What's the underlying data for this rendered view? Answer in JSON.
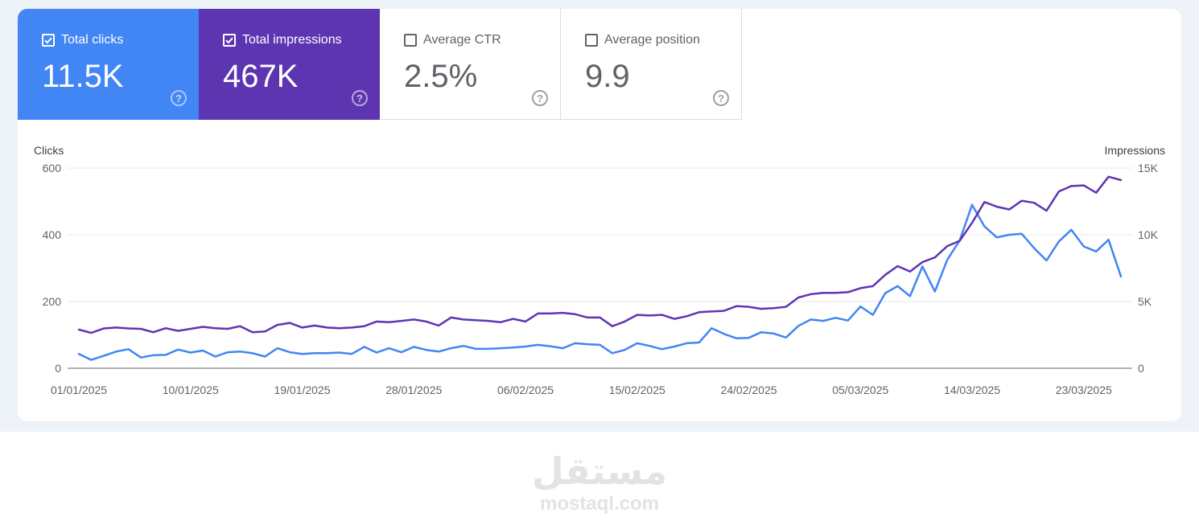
{
  "metrics": [
    {
      "label": "Total clicks",
      "value": "11.5K",
      "checked": true,
      "color": "#4285f4",
      "help": "?"
    },
    {
      "label": "Total impressions",
      "value": "467K",
      "checked": true,
      "color": "#5e35b1",
      "help": "?"
    },
    {
      "label": "Average CTR",
      "value": "2.5%",
      "checked": false,
      "color": "#ffffff",
      "help": "?"
    },
    {
      "label": "Average position",
      "value": "9.9",
      "checked": false,
      "color": "#ffffff",
      "help": "?"
    }
  ],
  "chart_data": {
    "type": "line",
    "left_axis_label": "Clicks",
    "right_axis_label": "Impressions",
    "left_ticks": [
      "0",
      "200",
      "400",
      "600"
    ],
    "right_ticks": [
      "0",
      "5K",
      "10K",
      "15K"
    ],
    "ylim_left": [
      0,
      600
    ],
    "ylim_right": [
      0,
      15000
    ],
    "grid": true,
    "x_start": "01/01/2025",
    "x_tick_labels": [
      "01/01/2025",
      "10/01/2025",
      "19/01/2025",
      "28/01/2025",
      "06/02/2025",
      "15/02/2025",
      "24/02/2025",
      "05/03/2025",
      "14/03/2025",
      "23/03/2025"
    ],
    "series": [
      {
        "name": "Clicks",
        "axis": "left",
        "color": "#4285f4",
        "values": [
          43,
          25,
          37,
          50,
          57,
          32,
          39,
          40,
          56,
          47,
          53,
          35,
          48,
          50,
          45,
          35,
          60,
          48,
          43,
          45,
          45,
          47,
          43,
          64,
          47,
          60,
          48,
          64,
          55,
          50,
          60,
          67,
          58,
          58,
          60,
          62,
          65,
          70,
          66,
          60,
          75,
          72,
          70,
          45,
          55,
          75,
          67,
          57,
          65,
          75,
          77,
          120,
          103,
          90,
          91,
          108,
          104,
          92,
          127,
          146,
          142,
          151,
          143,
          185,
          160,
          225,
          246,
          216,
          305,
          230,
          325,
          383,
          490,
          425,
          392,
          400,
          403,
          360,
          323,
          380,
          415,
          365,
          350,
          385,
          275
        ]
      },
      {
        "name": "Impressions",
        "axis": "right",
        "color": "#5e35b1",
        "values": [
          2900,
          2650,
          2980,
          3050,
          2980,
          2950,
          2700,
          3000,
          2800,
          2950,
          3100,
          3000,
          2950,
          3150,
          2700,
          2750,
          3250,
          3400,
          3050,
          3200,
          3050,
          3000,
          3050,
          3150,
          3500,
          3450,
          3550,
          3650,
          3500,
          3200,
          3800,
          3650,
          3600,
          3550,
          3450,
          3700,
          3500,
          4100,
          4100,
          4150,
          4050,
          3800,
          3800,
          3150,
          3500,
          4000,
          3950,
          4000,
          3700,
          3900,
          4200,
          4250,
          4300,
          4650,
          4600,
          4450,
          4500,
          4600,
          5300,
          5550,
          5650,
          5650,
          5700,
          6000,
          6150,
          7000,
          7650,
          7250,
          7950,
          8300,
          9150,
          9550,
          10900,
          12450,
          12100,
          11900,
          12550,
          12400,
          11800,
          13250,
          13650,
          13700,
          13150,
          14350,
          14100
        ]
      }
    ]
  },
  "watermark": {
    "arabic": "مستقل",
    "latin": "mostaql.com"
  }
}
